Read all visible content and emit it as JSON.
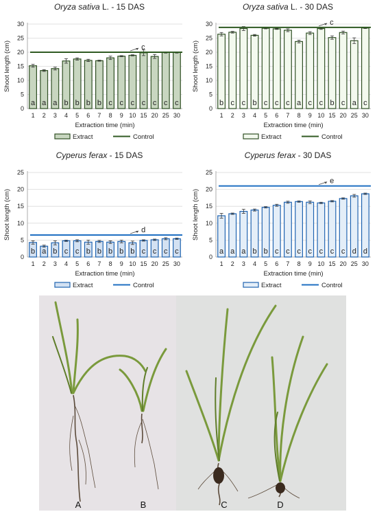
{
  "chart_data": [
    {
      "type": "bar",
      "title_parts": [
        {
          "text": "Oryza sativa",
          "italic": true
        },
        {
          "text": " L. - 15 DAS",
          "italic": false
        }
      ],
      "xlabel": "Extraction time (min)",
      "ylabel": "Shoot length (cm)",
      "ylim": [
        0,
        30
      ],
      "yticks": [
        0,
        5,
        10,
        15,
        20,
        25,
        30
      ],
      "grid": true,
      "categories": [
        "1",
        "2",
        "3",
        "4",
        "5",
        "6",
        "7",
        "8",
        "9",
        "10",
        "15",
        "20",
        "25",
        "30"
      ],
      "series": [
        {
          "name": "Extract",
          "values": [
            15.2,
            13.5,
            14.2,
            16.9,
            17.6,
            17.1,
            17.0,
            18.0,
            18.6,
            18.9,
            19.8,
            18.5,
            19.9,
            19.9
          ],
          "errors": [
            0.5,
            0.3,
            0.5,
            0.8,
            0.4,
            0.4,
            0.2,
            0.6,
            0.2,
            0.2,
            1.0,
            0.7,
            0.2,
            0.2
          ],
          "letters": [
            "a",
            "a",
            "a",
            "b",
            "b",
            "b",
            "b",
            "c",
            "c",
            "c",
            "c",
            "c",
            "c",
            "c"
          ]
        },
        {
          "name": "Control",
          "value": 20.0,
          "letter": "c"
        }
      ],
      "colors": {
        "bar_fill": "#c8d6c0",
        "bar_stroke": "#2f4f24",
        "control": "#2f5a22"
      },
      "legend_position": "bottom"
    },
    {
      "type": "bar",
      "title_parts": [
        {
          "text": "Oryza sativa",
          "italic": true
        },
        {
          "text": " L. - 30 DAS",
          "italic": false
        }
      ],
      "xlabel": "Extraction time (min)",
      "ylabel": "Shoot length (cm)",
      "ylim": [
        0,
        30
      ],
      "yticks": [
        0,
        5,
        10,
        15,
        20,
        25,
        30
      ],
      "grid": true,
      "categories": [
        "1",
        "2",
        "3",
        "4",
        "5",
        "6",
        "7",
        "8",
        "9",
        "10",
        "15",
        "20",
        "25",
        "30"
      ],
      "series": [
        {
          "name": "Extract",
          "values": [
            26.4,
            27.1,
            28.4,
            26.0,
            28.5,
            28.3,
            27.8,
            23.8,
            26.8,
            28.4,
            25.2,
            27.0,
            24.1,
            28.6
          ],
          "errors": [
            0.6,
            0.3,
            0.7,
            0.3,
            0.2,
            0.2,
            0.5,
            0.5,
            0.5,
            0.3,
            0.6,
            0.5,
            1.0,
            0.2
          ],
          "letters": [
            "b",
            "c",
            "c",
            "b",
            "c",
            "c",
            "c",
            "a",
            "c",
            "c",
            "b",
            "c",
            "a",
            "c"
          ]
        },
        {
          "name": "Control",
          "value": 28.8,
          "letter": "c"
        }
      ],
      "colors": {
        "bar_fill": "#f3f9ee",
        "bar_stroke": "#2f4f24",
        "control": "#2f5a22"
      },
      "legend_position": "bottom"
    },
    {
      "type": "bar",
      "title_parts": [
        {
          "text": "Cyperus ferax",
          "italic": true
        },
        {
          "text": " - 15 DAS",
          "italic": false
        }
      ],
      "xlabel": "Extraction time (min)",
      "ylabel": "Shoot length (cm)",
      "ylim": [
        0,
        25
      ],
      "yticks": [
        0,
        5,
        10,
        15,
        20,
        25
      ],
      "grid": true,
      "categories": [
        "1",
        "2",
        "3",
        "4",
        "5",
        "6",
        "7",
        "8",
        "9",
        "10",
        "15",
        "20",
        "25",
        "30"
      ],
      "series": [
        {
          "name": "Extract",
          "values": [
            4.3,
            3.2,
            4.2,
            4.8,
            4.8,
            4.4,
            4.6,
            4.4,
            4.6,
            4.2,
            4.9,
            5.1,
            5.4,
            5.4
          ],
          "errors": [
            0.5,
            0.3,
            0.6,
            0.2,
            0.3,
            0.6,
            0.3,
            0.4,
            0.4,
            0.5,
            0.2,
            0.2,
            0.3,
            0.2
          ],
          "letters": [
            "b",
            "a",
            "b",
            "c",
            "c",
            "b",
            "b",
            "b",
            "b",
            "b",
            "c",
            "c",
            "c",
            "c"
          ]
        },
        {
          "name": "Control",
          "value": 6.5,
          "letter": "d"
        }
      ],
      "colors": {
        "bar_fill": "#d3e1f2",
        "bar_stroke": "#1f63b0",
        "control": "#1f6fc2"
      },
      "legend_position": "bottom"
    },
    {
      "type": "bar",
      "title_parts": [
        {
          "text": "Cyperus ferax",
          "italic": true
        },
        {
          "text": " - 30 DAS",
          "italic": false
        }
      ],
      "xlabel": "Extraction time (min)",
      "ylabel": "Shoot length (cm)",
      "ylim": [
        0,
        25
      ],
      "yticks": [
        0,
        5,
        10,
        15,
        20,
        25
      ],
      "grid": true,
      "categories": [
        "1",
        "2",
        "3",
        "4",
        "5",
        "6",
        "7",
        "8",
        "9",
        "10",
        "15",
        "20",
        "25",
        "30"
      ],
      "series": [
        {
          "name": "Extract",
          "values": [
            12.2,
            12.8,
            13.5,
            13.9,
            14.7,
            15.3,
            16.2,
            16.4,
            16.2,
            16.0,
            16.5,
            17.3,
            18.1,
            18.7
          ],
          "errors": [
            0.7,
            0.2,
            0.6,
            0.3,
            0.2,
            0.3,
            0.3,
            0.2,
            0.4,
            0.2,
            0.2,
            0.2,
            0.4,
            0.2
          ],
          "letters": [
            "a",
            "a",
            "a",
            "b",
            "b",
            "c",
            "c",
            "c",
            "c",
            "c",
            "c",
            "c",
            "d",
            "d"
          ]
        },
        {
          "name": "Control",
          "value": 21.0,
          "letter": "e"
        }
      ],
      "colors": {
        "bar_fill": "#e4eef8",
        "bar_stroke": "#1f63b0",
        "control": "#1f6fc2"
      },
      "legend_position": "bottom"
    }
  ],
  "photos": {
    "labels": [
      "A",
      "B",
      "C",
      "D"
    ],
    "colors": {
      "left_bg": "#e7e3e6",
      "right_bg": "#e0e1e0",
      "leaf": "#7a9a3c",
      "leaf_dark": "#5f7d2a",
      "root": "#5b4a3a"
    }
  }
}
